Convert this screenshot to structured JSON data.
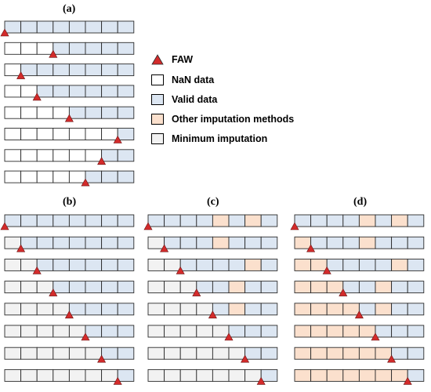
{
  "colors": {
    "nan": "#ffffff",
    "valid": "#dce6f2",
    "other": "#fbe0cd",
    "minimum": "#f2f2f2",
    "triangle": "#d32b2b",
    "border": "#2b2b2b"
  },
  "legend": [
    {
      "key": "faw",
      "label": "FAW",
      "symbol": "triangle"
    },
    {
      "key": "nan",
      "label": "NaN data",
      "symbol": "box"
    },
    {
      "key": "valid",
      "label": "Valid data",
      "symbol": "box"
    },
    {
      "key": "other",
      "label": "Other imputation methods",
      "symbol": "box"
    },
    {
      "key": "minimum",
      "label": "Minimum imputation",
      "symbol": "box"
    }
  ],
  "panels": [
    {
      "id": "a",
      "label": "(a)",
      "rows": [
        {
          "cells": "VVVVVVVV",
          "faw": 0
        },
        {
          "cells": "NNNVVVVV",
          "faw": 3
        },
        {
          "cells": "NVVVVVVV",
          "faw": 1
        },
        {
          "cells": "NNVVVVVV",
          "faw": 2
        },
        {
          "cells": "NNNNVVVV",
          "faw": 4
        },
        {
          "cells": "NNNNNNNV",
          "faw": 7
        },
        {
          "cells": "NNNNNNVV",
          "faw": 6
        },
        {
          "cells": "NNNNNVVV",
          "faw": 5
        }
      ]
    },
    {
      "id": "b",
      "label": "(b)",
      "rows": [
        {
          "cells": "VVVVVVVV",
          "faw": 0
        },
        {
          "cells": "MVVVVVVV",
          "faw": 1
        },
        {
          "cells": "MMVVVVVV",
          "faw": 2
        },
        {
          "cells": "MMMVVVVV",
          "faw": 3
        },
        {
          "cells": "MMMMVVVV",
          "faw": 4
        },
        {
          "cells": "MMMMMVVV",
          "faw": 5
        },
        {
          "cells": "MMMMMMVV",
          "faw": 6
        },
        {
          "cells": "MMMMMMMV",
          "faw": 7
        }
      ]
    },
    {
      "id": "c",
      "label": "(c)",
      "rows": [
        {
          "cells": "VVVVOVOV",
          "faw": 0
        },
        {
          "cells": "MVVVOVVV",
          "faw": 1
        },
        {
          "cells": "MMVVVVOV",
          "faw": 2
        },
        {
          "cells": "MMMVVOVV",
          "faw": 3
        },
        {
          "cells": "MMMMVOVV",
          "faw": 4
        },
        {
          "cells": "MMMMMVVV",
          "faw": 5
        },
        {
          "cells": "MMMMMMVV",
          "faw": 6
        },
        {
          "cells": "MMMMMMMV",
          "faw": 7
        }
      ]
    },
    {
      "id": "d",
      "label": "(d)",
      "rows": [
        {
          "cells": "VVVVOVOV",
          "faw": 0
        },
        {
          "cells": "OVVVOVVV",
          "faw": 1
        },
        {
          "cells": "OOVVVVOV",
          "faw": 2
        },
        {
          "cells": "OOOVVOVV",
          "faw": 3
        },
        {
          "cells": "OOOOVOVV",
          "faw": 4
        },
        {
          "cells": "OOOOOVVV",
          "faw": 5
        },
        {
          "cells": "OOOOOOVV",
          "faw": 6
        },
        {
          "cells": "OOOOOOOV",
          "faw": 7
        }
      ]
    }
  ]
}
